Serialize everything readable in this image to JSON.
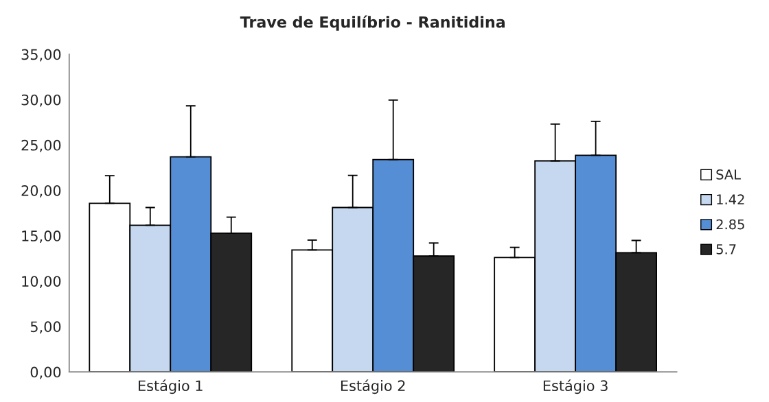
{
  "chart_data": {
    "type": "bar",
    "title": "Trave de Equilíbrio - Ranitidina",
    "categories": [
      "Estágio 1",
      "Estágio 2",
      "Estágio 3"
    ],
    "series": [
      {
        "name": "SAL",
        "color": "#ffffff",
        "values": [
          18.57,
          13.43,
          12.6
        ],
        "errors": [
          [
            18.57,
            21.62
          ],
          [
            13.43,
            14.52
          ],
          [
            12.6,
            13.72
          ]
        ]
      },
      {
        "name": "1.42",
        "color": "#c5d8f0",
        "values": [
          16.15,
          18.11,
          23.25
        ],
        "errors": [
          [
            16.15,
            18.11
          ],
          [
            18.11,
            21.65
          ],
          [
            23.25,
            27.3
          ]
        ]
      },
      {
        "name": "2.85",
        "color": "#558ed5",
        "values": [
          23.69,
          23.39,
          23.87
        ],
        "errors": [
          [
            23.69,
            29.32
          ],
          [
            23.39,
            29.95
          ],
          [
            23.87,
            27.61
          ]
        ]
      },
      {
        "name": "5.7",
        "color": "#262626",
        "values": [
          15.28,
          12.76,
          13.13
        ],
        "errors": [
          [
            15.28,
            17.05
          ],
          [
            12.76,
            14.2
          ],
          [
            13.13,
            14.48
          ]
        ]
      }
    ],
    "ylim": [
      0,
      35
    ],
    "yticks": [
      {
        "value": 0,
        "label": "0,00"
      },
      {
        "value": 5,
        "label": "5,00"
      },
      {
        "value": 10,
        "label": "10,00"
      },
      {
        "value": 15,
        "label": "15,00"
      },
      {
        "value": 20,
        "label": "20,00"
      },
      {
        "value": 25,
        "label": "25,00"
      },
      {
        "value": 30,
        "label": "30,00"
      },
      {
        "value": 35,
        "label": "35,00"
      }
    ],
    "grid": false,
    "legend": "right"
  }
}
